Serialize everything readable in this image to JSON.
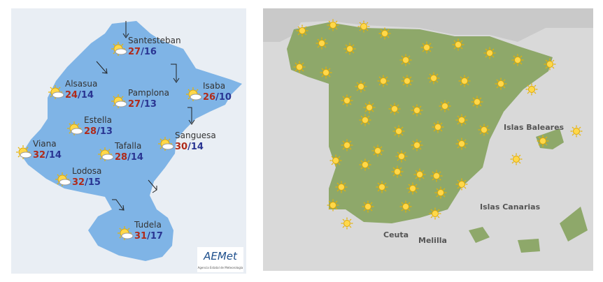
{
  "left": {
    "separator": "/",
    "cities": [
      {
        "name": "Santesteban",
        "max": 27,
        "min": 16
      },
      {
        "name": "Alsasua",
        "max": 24,
        "min": 14
      },
      {
        "name": "Pamplona",
        "max": 27,
        "min": 13
      },
      {
        "name": "Isaba",
        "max": 26,
        "min": 10
      },
      {
        "name": "Estella",
        "max": 28,
        "min": 13
      },
      {
        "name": "Sanguesa",
        "max": 30,
        "min": 14
      },
      {
        "name": "Viana",
        "max": 32,
        "min": 14
      },
      {
        "name": "Tafalla",
        "max": 28,
        "min": 14
      },
      {
        "name": "Lodosa",
        "max": 32,
        "min": 15
      },
      {
        "name": "Tudela",
        "max": 31,
        "min": 17
      }
    ],
    "logo": {
      "name": "AEMet",
      "subtitle": "Agencia Estatal de Meteorología"
    }
  },
  "right": {
    "labels": [
      "Islas Baleares",
      "Islas Canarias",
      "Ceuta",
      "Melilla"
    ]
  }
}
